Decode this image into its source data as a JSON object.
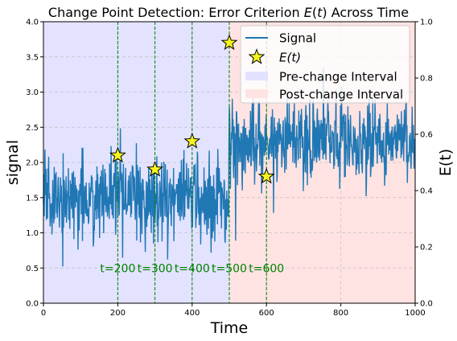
{
  "chart_data": {
    "type": "line",
    "title": "Change Point Detection: Error Criterion E(t) Across Time",
    "xlabel": "Time",
    "ylabel": "signal",
    "y2label": "E(t)",
    "xlim": [
      0,
      1000
    ],
    "ylim": [
      0,
      4.0
    ],
    "y2lim": [
      0,
      1.0
    ],
    "x_ticks": [
      "0",
      "200",
      "400",
      "600",
      "800",
      "1000"
    ],
    "y_ticks": [
      "0.0",
      "0.5",
      "1.0",
      "1.5",
      "2.0",
      "2.5",
      "3.0",
      "3.5",
      "4.0"
    ],
    "y2_ticks": [
      "0.0",
      "0.2",
      "0.4",
      "0.6",
      "0.8",
      "1.0"
    ],
    "grid": true,
    "legend_position": "top-right",
    "regions": [
      {
        "name": "Pre-change Interval",
        "x_start": 0,
        "x_end": 500,
        "color": "#e3e3ff"
      },
      {
        "name": "Post-change Interval",
        "x_start": 500,
        "x_end": 1000,
        "color": "#ffe3e3"
      }
    ],
    "signal": {
      "name": "Signal",
      "color": "#1f77b4",
      "segments": [
        {
          "x_start": 0,
          "x_end": 500,
          "mean": 1.5,
          "std": 0.3
        },
        {
          "x_start": 500,
          "x_end": 1000,
          "mean": 2.3,
          "std": 0.3
        }
      ]
    },
    "criterion": {
      "name": "E(t)",
      "color": "#f5f51e",
      "points": [
        {
          "t": 200,
          "e": 0.525
        },
        {
          "t": 300,
          "e": 0.475
        },
        {
          "t": 400,
          "e": 0.575
        },
        {
          "t": 500,
          "e": 0.925
        },
        {
          "t": 600,
          "e": 0.45
        }
      ]
    },
    "vlines": [
      {
        "x": 200,
        "label": "t=200"
      },
      {
        "x": 300,
        "label": "t=300"
      },
      {
        "x": 400,
        "label": "t=400"
      },
      {
        "x": 500,
        "label": "t=500"
      },
      {
        "x": 600,
        "label": "t=600"
      }
    ],
    "vline_color": "#008000"
  }
}
